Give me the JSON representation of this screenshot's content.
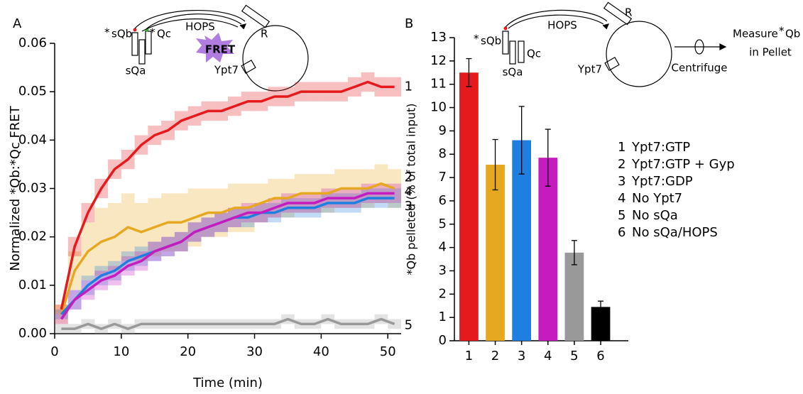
{
  "chart_data": [
    {
      "type": "line",
      "panel": "A",
      "xlabel": "Time (min)",
      "ylabel": "Normalized *Qb:*Qc FRET",
      "annotations": [
        "*",
        "sQb",
        "*",
        "Qc",
        "sQa",
        "HOPS",
        "FRET",
        "R",
        "Ypt7"
      ],
      "xlim": [
        0,
        52
      ],
      "xticks": [
        0,
        10,
        20,
        30,
        40,
        50
      ],
      "ylim": [
        0,
        0.06
      ],
      "yticks": [
        {
          "value": 0,
          "label": "0.00"
        },
        0.01,
        0.02,
        0.03,
        0.04,
        0.05,
        0.06
      ],
      "x": [
        1,
        3,
        5,
        7,
        9,
        11,
        13,
        15,
        17,
        19,
        21,
        23,
        25,
        27,
        29,
        31,
        33,
        35,
        37,
        39,
        41,
        43,
        45,
        47,
        49,
        51
      ],
      "series": [
        {
          "name": "1",
          "color": "#e41a1c",
          "values": [
            0.005,
            0.018,
            0.025,
            0.03,
            0.034,
            0.036,
            0.039,
            0.041,
            0.042,
            0.044,
            0.045,
            0.046,
            0.046,
            0.047,
            0.048,
            0.048,
            0.049,
            0.049,
            0.05,
            0.05,
            0.05,
            0.05,
            0.051,
            0.052,
            0.051,
            0.051
          ],
          "errors": [
            0.001,
            0.002,
            0.002,
            0.002,
            0.002,
            0.002,
            0.002,
            0.002,
            0.002,
            0.002,
            0.002,
            0.002,
            0.002,
            0.002,
            0.002,
            0.002,
            0.002,
            0.002,
            0.002,
            0.002,
            0.002,
            0.002,
            0.002,
            0.002,
            0.002,
            0.002
          ]
        },
        {
          "name": "2",
          "color": "#e5a820",
          "values": [
            0.004,
            0.013,
            0.017,
            0.019,
            0.02,
            0.022,
            0.021,
            0.022,
            0.023,
            0.023,
            0.024,
            0.025,
            0.025,
            0.026,
            0.026,
            0.027,
            0.028,
            0.028,
            0.029,
            0.029,
            0.029,
            0.03,
            0.03,
            0.03,
            0.031,
            0.03
          ],
          "errors": [
            0.002,
            0.004,
            0.006,
            0.007,
            0.007,
            0.007,
            0.006,
            0.006,
            0.006,
            0.006,
            0.006,
            0.005,
            0.005,
            0.005,
            0.005,
            0.004,
            0.004,
            0.004,
            0.004,
            0.004,
            0.004,
            0.004,
            0.004,
            0.004,
            0.004,
            0.004
          ]
        },
        {
          "name": "3",
          "color": "#1f7fe0",
          "values": [
            0.004,
            0.007,
            0.01,
            0.012,
            0.013,
            0.015,
            0.016,
            0.017,
            0.018,
            0.019,
            0.021,
            0.022,
            0.023,
            0.024,
            0.024,
            0.025,
            0.025,
            0.026,
            0.026,
            0.026,
            0.027,
            0.027,
            0.027,
            0.028,
            0.028,
            0.028
          ],
          "errors": [
            0.001,
            0.002,
            0.002,
            0.002,
            0.002,
            0.002,
            0.002,
            0.002,
            0.002,
            0.002,
            0.002,
            0.002,
            0.002,
            0.002,
            0.002,
            0.002,
            0.002,
            0.002,
            0.002,
            0.002,
            0.002,
            0.002,
            0.002,
            0.002,
            0.002,
            0.002
          ]
        },
        {
          "name": "4",
          "color": "#c51bbf",
          "values": [
            0.003,
            0.007,
            0.009,
            0.011,
            0.012,
            0.014,
            0.015,
            0.017,
            0.018,
            0.019,
            0.021,
            0.022,
            0.023,
            0.024,
            0.025,
            0.025,
            0.026,
            0.027,
            0.027,
            0.027,
            0.028,
            0.028,
            0.028,
            0.029,
            0.029,
            0.029
          ],
          "errors": [
            0.001,
            0.002,
            0.002,
            0.002,
            0.002,
            0.002,
            0.002,
            0.002,
            0.002,
            0.002,
            0.002,
            0.002,
            0.002,
            0.002,
            0.002,
            0.002,
            0.002,
            0.002,
            0.002,
            0.002,
            0.002,
            0.002,
            0.002,
            0.002,
            0.002,
            0.002
          ]
        },
        {
          "name": "5",
          "color": "#999999",
          "values": [
            0.001,
            0.001,
            0.002,
            0.001,
            0.002,
            0.001,
            0.002,
            0.002,
            0.002,
            0.002,
            0.002,
            0.002,
            0.002,
            0.002,
            0.002,
            0.002,
            0.002,
            0.003,
            0.002,
            0.002,
            0.003,
            0.002,
            0.002,
            0.002,
            0.003,
            0.002
          ],
          "errors": [
            0.001,
            0.001,
            0.001,
            0.001,
            0.001,
            0.001,
            0.001,
            0.001,
            0.001,
            0.001,
            0.001,
            0.001,
            0.001,
            0.001,
            0.001,
            0.001,
            0.001,
            0.001,
            0.001,
            0.001,
            0.001,
            0.001,
            0.001,
            0.001,
            0.001,
            0.001
          ]
        }
      ]
    },
    {
      "type": "bar",
      "panel": "B",
      "ylabel": "*Qb pelleted (% of total input)",
      "annotations": [
        "*",
        "sQb",
        "Qc",
        "sQa",
        "HOPS",
        "R",
        "Ypt7",
        "Centrifuge",
        "Measure",
        "*",
        "Qb",
        "in Pellet"
      ],
      "categories": [
        "1",
        "2",
        "3",
        "4",
        "5",
        "6"
      ],
      "values": [
        11.5,
        7.55,
        8.6,
        7.85,
        3.78,
        1.45
      ],
      "errors": [
        0.6,
        1.08,
        1.45,
        1.22,
        0.52,
        0.25
      ],
      "colors": [
        "#e41a1c",
        "#e5a820",
        "#1f7fe0",
        "#c51bbf",
        "#999999",
        "#000000"
      ],
      "legend": [
        "Ypt7:GTP",
        "Ypt7:GTP + Gyp",
        "Ypt7:GDP",
        "No Ypt7",
        "No sQa",
        "No sQa/HOPS"
      ],
      "ylim": [
        0,
        13
      ],
      "yticks": [
        0,
        1,
        2,
        3,
        4,
        5,
        6,
        7,
        8,
        9,
        10,
        11,
        12,
        13
      ]
    }
  ]
}
